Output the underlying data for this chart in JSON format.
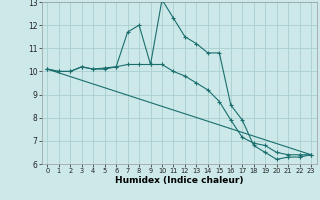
{
  "xlabel": "Humidex (Indice chaleur)",
  "xlim": [
    -0.5,
    23.5
  ],
  "ylim": [
    6,
    13
  ],
  "xticks": [
    0,
    1,
    2,
    3,
    4,
    5,
    6,
    7,
    8,
    9,
    10,
    11,
    12,
    13,
    14,
    15,
    16,
    17,
    18,
    19,
    20,
    21,
    22,
    23
  ],
  "yticks": [
    6,
    7,
    8,
    9,
    10,
    11,
    12,
    13
  ],
  "bg_color": "#cce8e8",
  "line_color": "#1a6e6e",
  "grid_color": "#aacece",
  "line1_x": [
    0,
    1,
    2,
    3,
    4,
    5,
    6,
    7,
    8,
    9,
    10,
    11,
    12,
    13,
    14,
    15,
    16,
    17,
    18,
    19,
    20,
    21,
    22,
    23
  ],
  "line1_y": [
    10.1,
    10.0,
    10.0,
    10.2,
    10.1,
    10.15,
    10.2,
    11.7,
    12.0,
    10.3,
    13.1,
    12.3,
    11.5,
    11.2,
    10.8,
    10.8,
    8.55,
    7.9,
    6.8,
    6.5,
    6.2,
    6.3,
    6.3,
    6.4
  ],
  "line2_x": [
    0,
    1,
    2,
    3,
    4,
    5,
    6,
    7,
    8,
    9,
    10,
    11,
    12,
    13,
    14,
    15,
    16,
    17,
    18,
    19,
    20,
    21,
    22,
    23
  ],
  "line2_y": [
    10.1,
    10.0,
    10.0,
    10.2,
    10.1,
    10.1,
    10.2,
    10.3,
    10.3,
    10.3,
    10.3,
    10.0,
    9.8,
    9.5,
    9.2,
    8.7,
    7.9,
    7.15,
    6.9,
    6.8,
    6.5,
    6.4,
    6.4,
    6.4
  ],
  "line3_x": [
    0,
    23
  ],
  "line3_y": [
    10.1,
    6.4
  ]
}
